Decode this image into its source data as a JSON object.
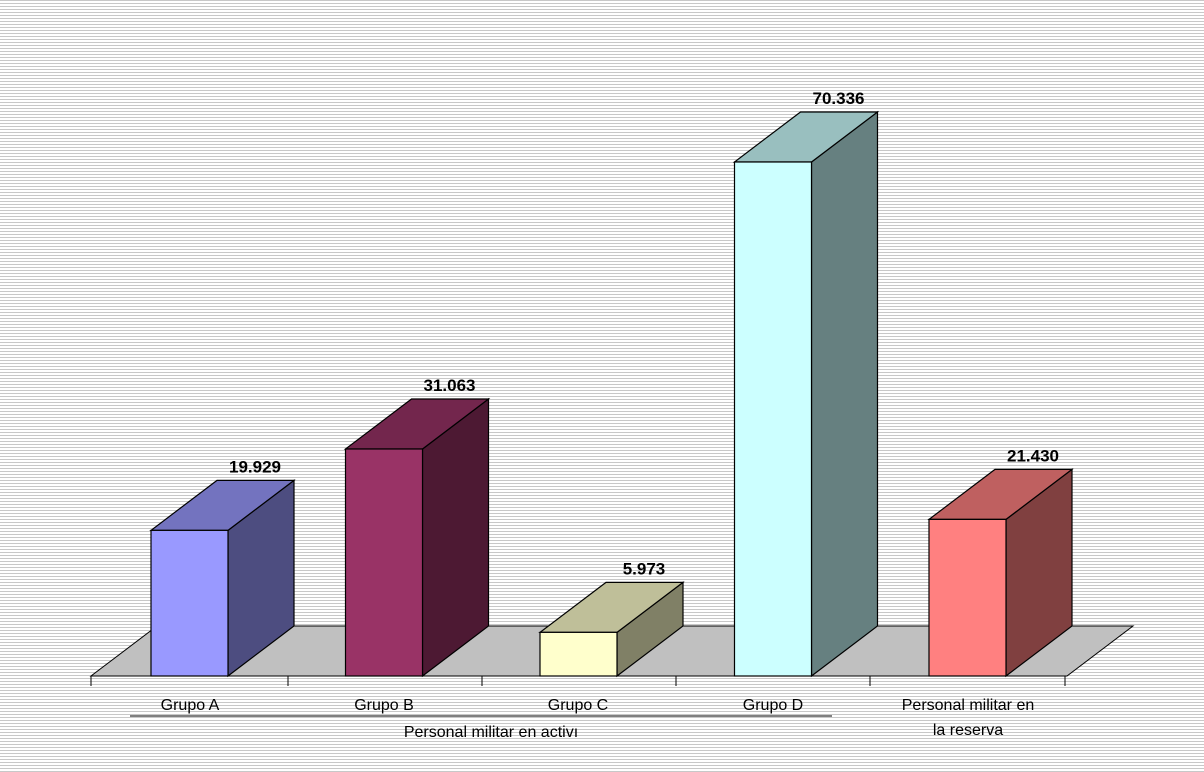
{
  "chart_data": {
    "type": "bar",
    "title": "",
    "xlabel": "",
    "ylabel": "",
    "grid": false,
    "three_d": true,
    "categories": [
      "Grupo A",
      "Grupo B",
      "Grupo C",
      "Grupo D",
      "Personal militar en la reserva"
    ],
    "category_lines": [
      [
        "Grupo A"
      ],
      [
        "Grupo B"
      ],
      [
        "Grupo C"
      ],
      [
        "Grupo D"
      ],
      [
        "Personal militar en",
        "la reserva"
      ]
    ],
    "values": [
      19929,
      31063,
      5973,
      70336,
      21430
    ],
    "value_labels": [
      "19.929",
      "31.063",
      "5.973",
      "70.336",
      "21.430"
    ],
    "group_label": "Personal militar en activo",
    "group_label_visible": "Personal militar en activı",
    "ylim": [
      0,
      75000
    ],
    "colors": {
      "front": [
        "#9999ff",
        "#993366",
        "#ffffcc",
        "#ccffff",
        "#ff8080"
      ],
      "side": [
        "#4d4d80",
        "#4d1933",
        "#808066",
        "#668080",
        "#804040"
      ],
      "top": [
        "#7373bf",
        "#73264d",
        "#bfbf99",
        "#99bfbf",
        "#bf6060"
      ],
      "floor": "#c0c0c0",
      "background_lines": "#c8c8c8"
    }
  }
}
